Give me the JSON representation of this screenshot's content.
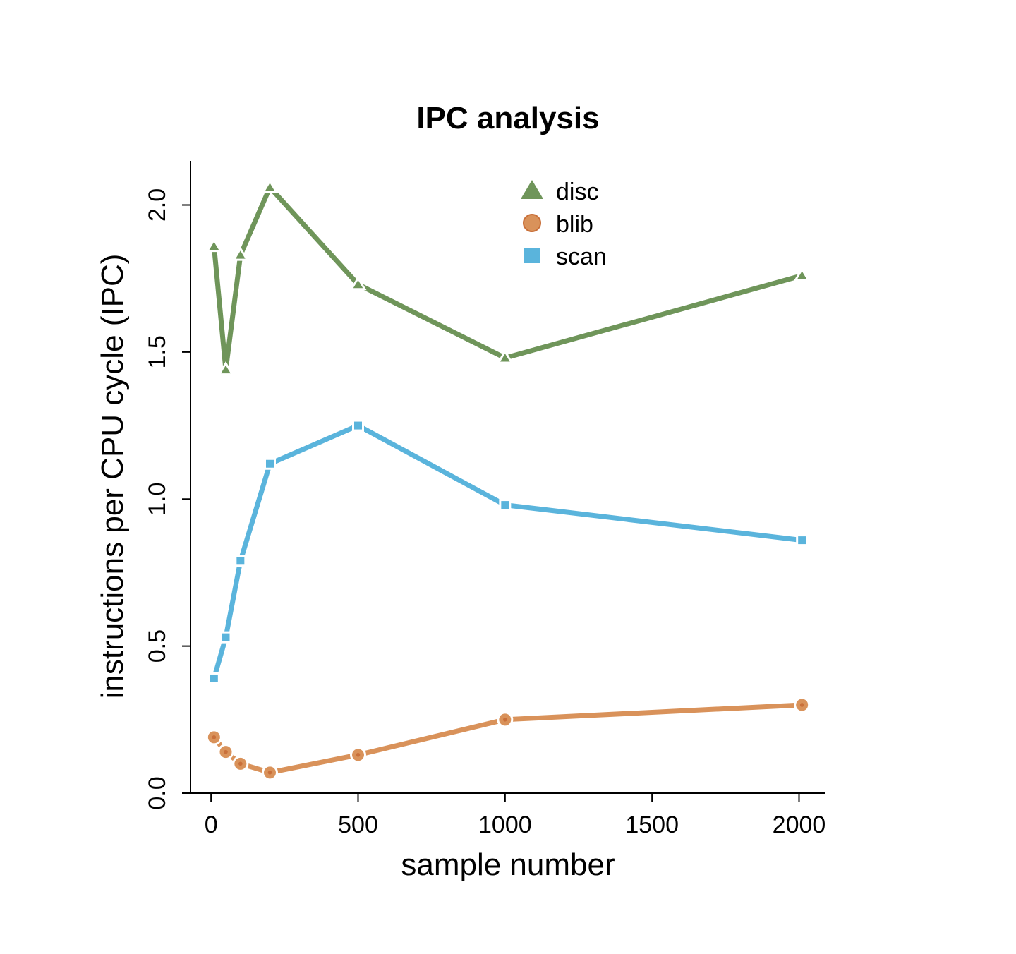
{
  "chart_data": {
    "type": "line",
    "title": "IPC analysis",
    "xlabel": "sample number",
    "ylabel": "instructions per CPU cycle (IPC)",
    "xlim": [
      -70,
      2090
    ],
    "ylim": [
      0,
      2.15
    ],
    "xticks": [
      0,
      500,
      1000,
      1500,
      2000
    ],
    "xtick_labels": [
      "0",
      "500",
      "1000",
      "1500",
      "2000"
    ],
    "yticks": [
      0,
      0.5,
      1,
      1.5,
      2
    ],
    "ytick_labels": [
      "0.0",
      "0.5",
      "1.0",
      "1.5",
      "2.0"
    ],
    "grid": false,
    "legend_position": "top-right",
    "series": [
      {
        "name": "disc",
        "marker": "triangle",
        "color": "#6f955a",
        "x": [
          10,
          50,
          100,
          200,
          500,
          1000,
          2010
        ],
        "y": [
          1.86,
          1.44,
          1.83,
          2.06,
          1.73,
          1.48,
          1.76
        ]
      },
      {
        "name": "blib",
        "marker": "circle",
        "color": "#d9925a",
        "x": [
          10,
          50,
          100,
          200,
          500,
          1000,
          2010
        ],
        "y": [
          0.19,
          0.14,
          0.1,
          0.07,
          0.13,
          0.25,
          0.3
        ]
      },
      {
        "name": "scan",
        "marker": "square",
        "color": "#5ab4dc",
        "x": [
          10,
          50,
          100,
          200,
          500,
          1000,
          2010
        ],
        "y": [
          0.39,
          0.53,
          0.79,
          1.12,
          1.25,
          0.98,
          0.86
        ]
      }
    ]
  }
}
